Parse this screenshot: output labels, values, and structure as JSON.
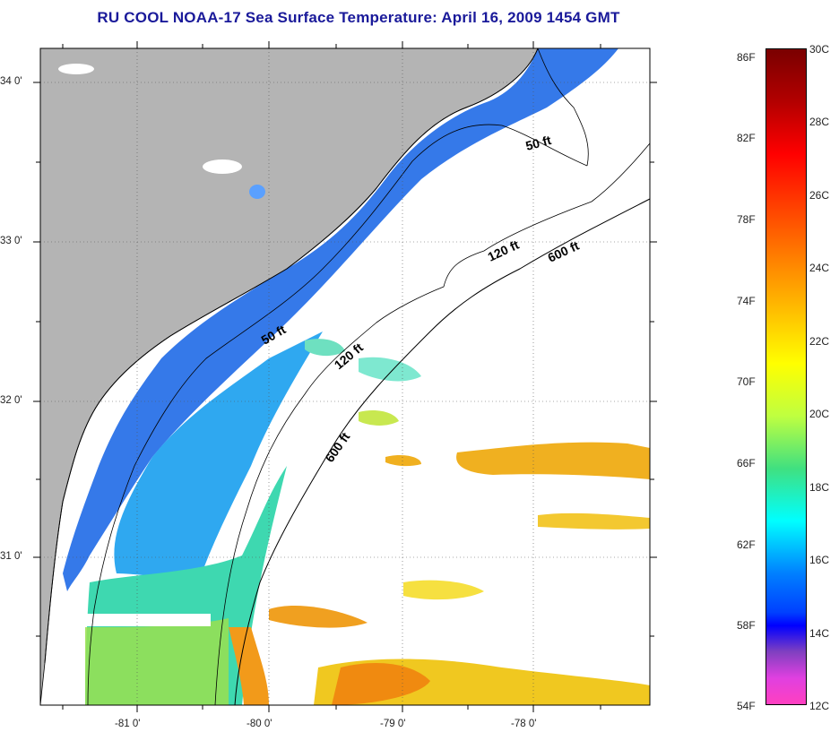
{
  "title": "RU COOL  NOAA-17  Sea Surface Temperature:  April 16, 2009 1454 GMT",
  "axes": {
    "lat_labels": [
      "34 0'",
      "33 0'",
      "32 0'",
      "31 0'"
    ],
    "lon_labels": [
      "-81 0'",
      "-80 0'",
      "-79 0'",
      "-78 0'"
    ]
  },
  "contours": {
    "isobath_50_a": "50 ft",
    "isobath_50_b": "50 ft",
    "isobath_120_a": "120 ft",
    "isobath_120_b": "120 ft",
    "isobath_600_a": "600 ft",
    "isobath_600_b": "600 ft"
  },
  "colorbar": {
    "fahrenheit": [
      "86F",
      "82F",
      "78F",
      "74F",
      "70F",
      "66F",
      "62F",
      "58F",
      "54F"
    ],
    "celsius": [
      "30C",
      "28C",
      "26C",
      "24C",
      "22C",
      "20C",
      "18C",
      "16C",
      "14C",
      "12C"
    ]
  },
  "colors": {
    "land": "#b4b4b4",
    "nearshore": "#2a6ee6",
    "mid_shelf": "#2fc8f0",
    "warm_band": "#e8a020",
    "gulf_stream": "#f28a1a",
    "title": "#1a1a9a"
  }
}
